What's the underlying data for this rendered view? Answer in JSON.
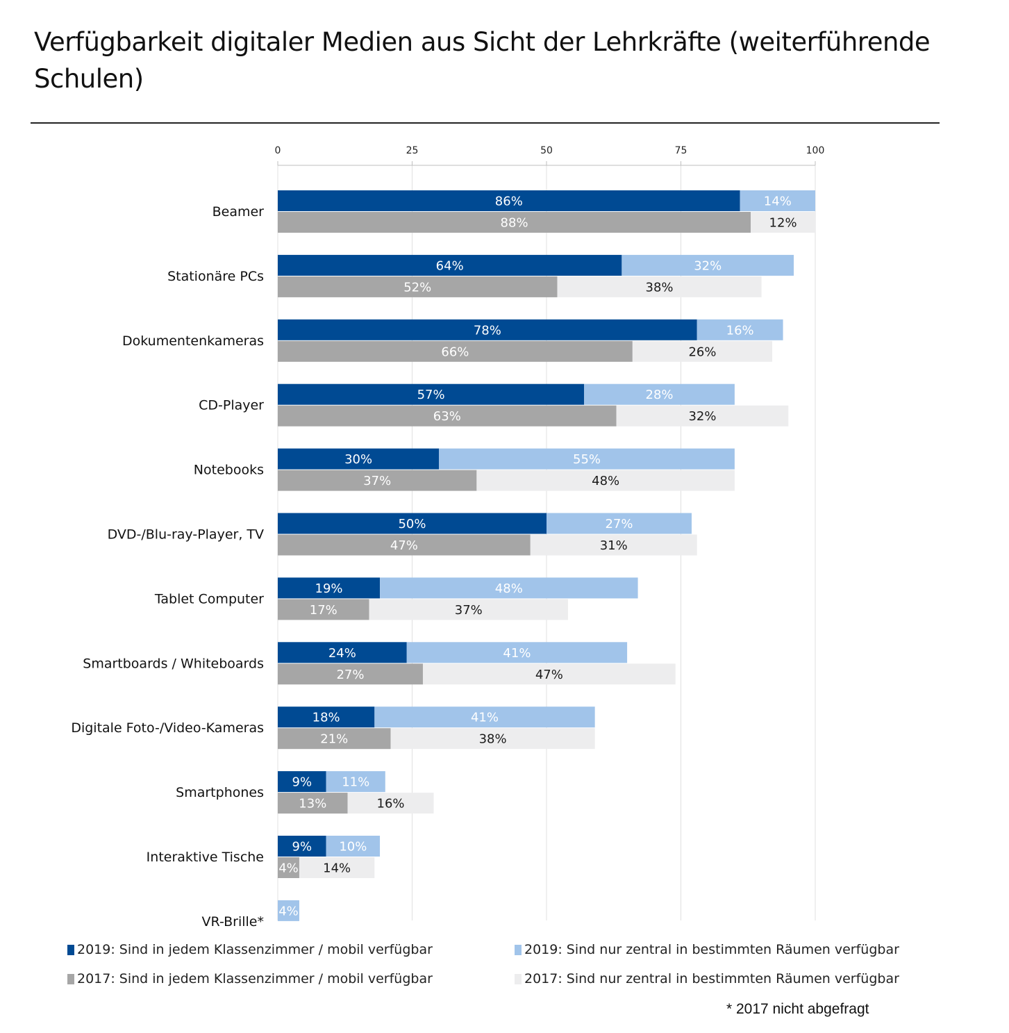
{
  "title": "Verfügbarkeit digitaler Medien aus Sicht der Lehrkräfte (weiterführende Schulen)",
  "colors": {
    "s2019_class": "#004a93",
    "s2019_central": "#a1c4ea",
    "s2017_class": "#a6a6a6",
    "s2017_central": "#ededee",
    "grid": "#e0e0e0",
    "axis": "#bfbfbf"
  },
  "chart_data": {
    "type": "bar",
    "orientation": "horizontal",
    "stacked": true,
    "title": "Verfügbarkeit digitaler Medien aus Sicht der Lehrkräfte (weiterführende Schulen)",
    "xlabel": "",
    "ylabel": "",
    "xlim": [
      0,
      100
    ],
    "xticks": [
      0,
      25,
      50,
      75,
      100
    ],
    "xaxis_position": "top",
    "grid": true,
    "legend_position": "bottom",
    "categories": [
      "Beamer",
      "Stationäre PCs",
      "Dokumentenkameras",
      "CD-Player",
      "Notebooks",
      "DVD-/Blu-ray-Player, TV",
      "Tablet Computer",
      "Smartboards / Whiteboards",
      "Digitale Foto-/Video-Kameras",
      "Smartphones",
      "Interaktive Tische",
      "VR-Brille*"
    ],
    "series": [
      {
        "name": "2019: Sind in jedem Klassenzimmer / mobil verfügbar",
        "group": "2019",
        "color_key": "s2019_class",
        "values": [
          86,
          64,
          78,
          57,
          30,
          50,
          19,
          24,
          18,
          9,
          9,
          null
        ]
      },
      {
        "name": "2019: Sind nur zentral in bestimmten Räumen verfügbar",
        "group": "2019",
        "color_key": "s2019_central",
        "values": [
          14,
          32,
          16,
          28,
          55,
          27,
          48,
          41,
          41,
          11,
          10,
          4
        ]
      },
      {
        "name": "2017: Sind in jedem Klassenzimmer / mobil verfügbar",
        "group": "2017",
        "color_key": "s2017_class",
        "values": [
          88,
          52,
          66,
          63,
          37,
          47,
          17,
          27,
          21,
          13,
          4,
          null
        ]
      },
      {
        "name": "2017: Sind nur zentral in bestimmten Räumen verfügbar",
        "group": "2017",
        "color_key": "s2017_central",
        "values": [
          12,
          38,
          26,
          32,
          48,
          31,
          37,
          47,
          38,
          16,
          14,
          null
        ]
      }
    ],
    "value_format": "{v}%",
    "footnote": "* 2017 nicht abgefragt"
  },
  "legend": [
    {
      "label": "2019: Sind in jedem Klassenzimmer / mobil verfügbar",
      "color_key": "s2019_class"
    },
    {
      "label": "2019: Sind nur zentral in bestimmten Räumen verfügbar",
      "color_key": "s2019_central"
    },
    {
      "label": "2017: Sind in jedem Klassenzimmer / mobil verfügbar",
      "color_key": "s2017_class"
    },
    {
      "label": "2017: Sind nur zentral in bestimmten Räumen verfügbar",
      "color_key": "s2017_central"
    }
  ],
  "footnote": "* 2017 nicht abgefragt"
}
